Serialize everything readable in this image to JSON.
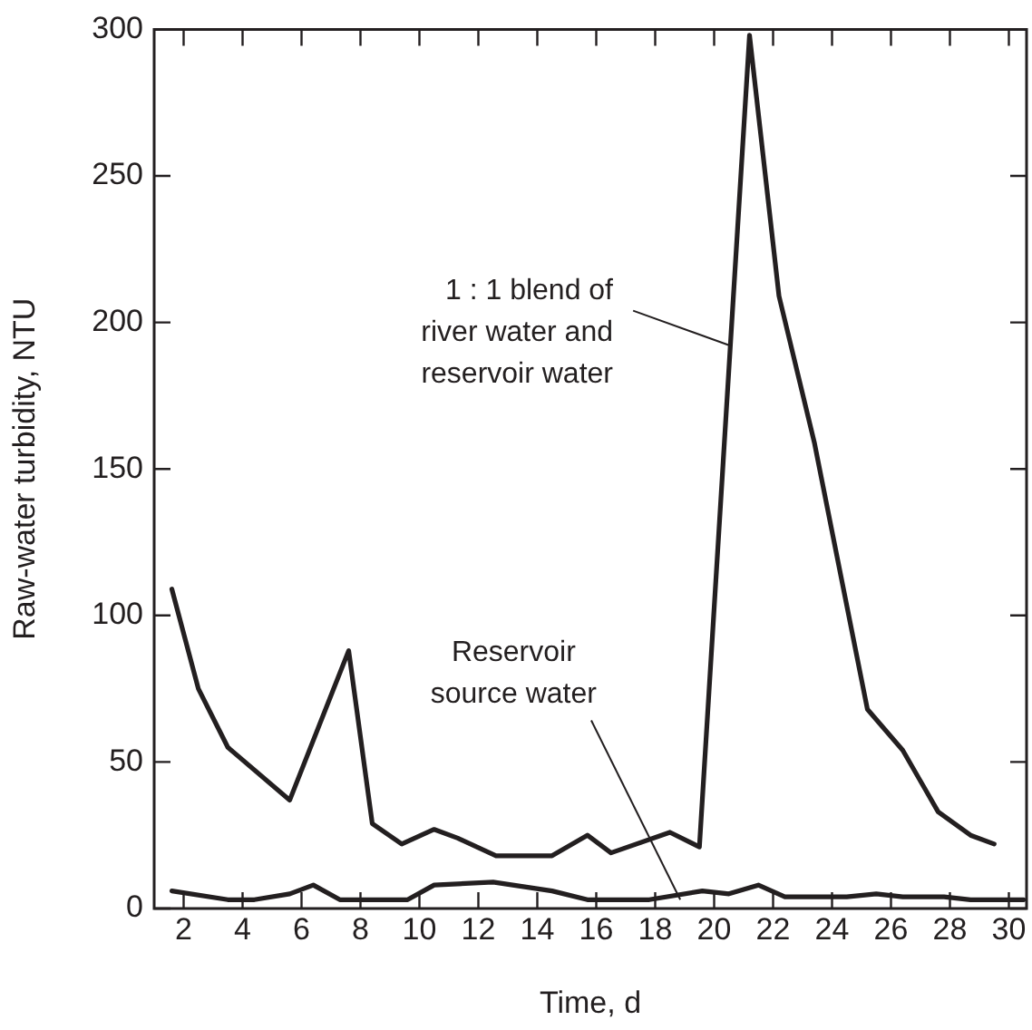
{
  "chart_data": {
    "type": "line",
    "xlabel": "Time, d",
    "ylabel": "Raw-water turbidity, NTU",
    "xlim": [
      1,
      30.6
    ],
    "xticks": [
      2,
      4,
      6,
      8,
      10,
      12,
      14,
      16,
      18,
      20,
      22,
      24,
      26,
      28,
      30
    ],
    "ylim": [
      0,
      300
    ],
    "yticks": [
      0,
      50,
      100,
      150,
      200,
      250,
      300
    ],
    "grid": false,
    "legend": false,
    "marker": "none",
    "line_style": "solid",
    "series": [
      {
        "color": "#231f20",
        "x": [
          1.6,
          2.5,
          3.5,
          5.6,
          7.6,
          8.4,
          9.4,
          10.5,
          11.3,
          12.6,
          14.5,
          15.7,
          16.5,
          18.5,
          19.5,
          21.2,
          22.2,
          23.4,
          25.2,
          26.4,
          27.6,
          28.7,
          29.5
        ],
        "values": [
          109,
          75,
          55,
          37,
          88,
          29,
          22,
          27,
          24,
          18,
          18,
          25,
          19,
          26,
          21,
          298,
          209,
          159,
          68,
          54,
          33,
          25,
          22
        ]
      },
      {
        "color": "#231f20",
        "x": [
          1.6,
          3.5,
          4.4,
          5.6,
          6.4,
          7.3,
          9.6,
          10.5,
          12.5,
          14.5,
          15.7,
          17.8,
          19.6,
          20.5,
          21.5,
          22.4,
          24.5,
          25.5,
          26.4,
          27.8,
          28.7,
          30.5
        ],
        "values": [
          6,
          3,
          3,
          5,
          8,
          3,
          3,
          8,
          9,
          6,
          3,
          3,
          6,
          5,
          8,
          4,
          4,
          5,
          4,
          4,
          3,
          3
        ]
      }
    ],
    "annotations": [
      {
        "text": "1 : 1 blend of\nriver water and\nreservoir water",
        "x": 20.57,
        "y": 192
      },
      {
        "text": "Reservoir\nsource water",
        "x": 18.85,
        "y": 3
      }
    ]
  }
}
